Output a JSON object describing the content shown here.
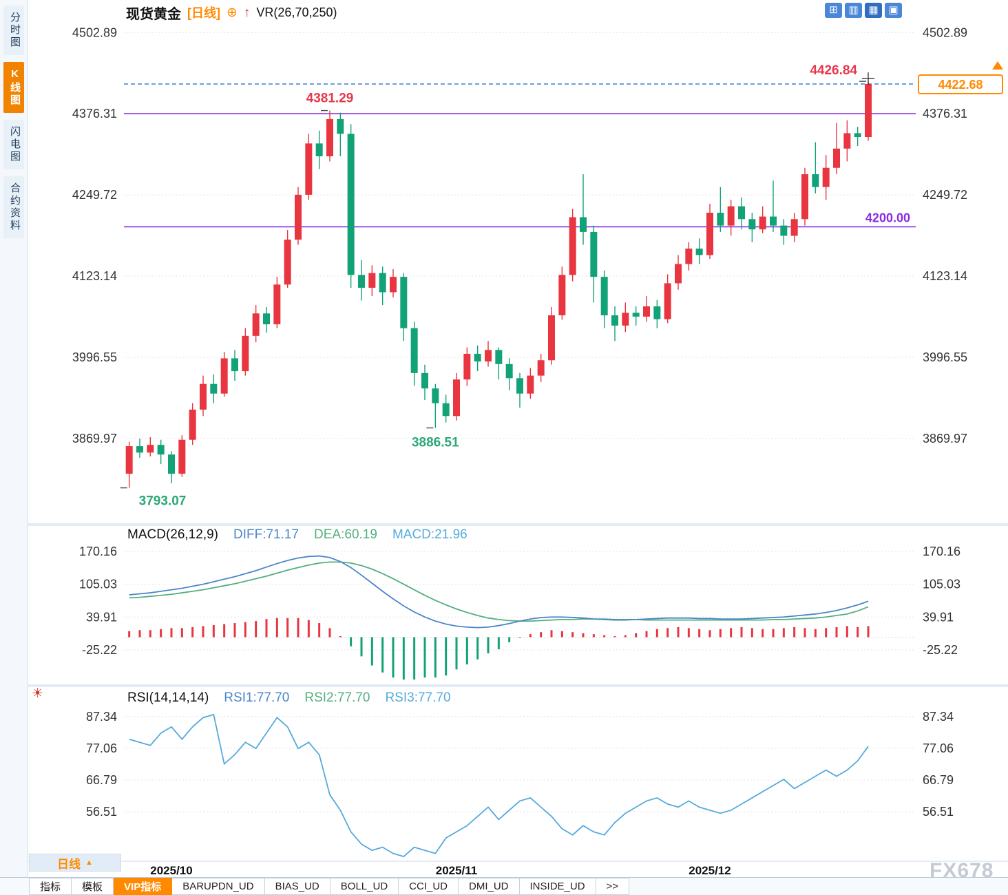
{
  "header": {
    "symbol": "现货黄金",
    "period_tag": "[日线]",
    "add_icon": "⊕",
    "arrow_icon": "↑",
    "indicator": "VR(26,70,250)",
    "layout_icons": [
      {
        "name": "layout-crosshair-icon",
        "glyph": "⊞",
        "active": false
      },
      {
        "name": "layout-grid-icon",
        "glyph": "▥",
        "active": false
      },
      {
        "name": "layout-chart-icon",
        "glyph": "▦",
        "active": true
      },
      {
        "name": "layout-split-icon",
        "glyph": "▣",
        "active": false
      }
    ]
  },
  "sidebar": {
    "items": [
      {
        "id": "timeline",
        "label": "分时图",
        "active": false
      },
      {
        "id": "kline",
        "label": "K线图",
        "active": true
      },
      {
        "id": "lightning",
        "label": "闪电图",
        "active": false
      },
      {
        "id": "contract",
        "label": "合约资料",
        "active": false
      }
    ]
  },
  "price_pane": {
    "axis_labels": [
      "4502.89",
      "4376.31",
      "4249.72",
      "4123.14",
      "3996.55",
      "3869.97"
    ],
    "axis_values": [
      4502.89,
      4376.31,
      4249.72,
      4123.14,
      3996.55,
      3869.97
    ],
    "hlines": [
      {
        "value": 4376.31,
        "label": "",
        "color": "#8a2be2"
      },
      {
        "value": 4200.0,
        "label": "4200.00",
        "color": "#8a2be2"
      }
    ],
    "current_price_line": {
      "value": 4422.68,
      "color": "#3d7fd6"
    },
    "price_tag": {
      "text": "4422.68",
      "color": "#ff8a00"
    },
    "annotations": [
      {
        "text": "4381.29",
        "value": 4381.29,
        "index": 19,
        "placement": "top-center",
        "color": "#e8374a"
      },
      {
        "text": "4426.84",
        "value": 4426.84,
        "index": 70,
        "placement": "top-left",
        "color": "#e8374a"
      },
      {
        "text": "3886.51",
        "value": 3886.51,
        "index": 29,
        "placement": "bottom-center",
        "color": "#2aa876"
      },
      {
        "text": "3793.07",
        "value": 3793.07,
        "index": 0,
        "placement": "bottom-right",
        "color": "#2aa876"
      }
    ]
  },
  "macd_pane": {
    "title": "MACD(26,12,9)",
    "diff_label": "DIFF:71.17",
    "dea_label": "DEA:60.19",
    "macd_label": "MACD:21.96",
    "axis_labels": [
      "170.16",
      "105.03",
      "39.91",
      "-25.22"
    ],
    "axis_values": [
      170.16,
      105.03,
      39.91,
      -25.22
    ]
  },
  "rsi_pane": {
    "title": "RSI(14,14,14)",
    "rsi1_label": "RSI1:77.70",
    "rsi2_label": "RSI2:77.70",
    "rsi3_label": "RSI3:77.70",
    "axis_labels": [
      "87.34",
      "77.06",
      "66.79",
      "56.51"
    ],
    "axis_values": [
      87.34,
      77.06,
      66.79,
      56.51
    ]
  },
  "chart_data": {
    "type": "candlestick",
    "title": "现货黄金 日线 (Spot Gold Daily)",
    "price_range_shown": [
      3869.97,
      4502.89
    ],
    "session_high": 4426.84,
    "session_low": 3793.07,
    "last_price": 4422.68,
    "x_ticks": [
      {
        "index": 4,
        "label": "2025/10"
      },
      {
        "index": 31,
        "label": "2025/11"
      },
      {
        "index": 55,
        "label": "2025/12"
      }
    ],
    "candles_ohlc": [
      [
        3815,
        3865,
        3793.07,
        3858
      ],
      [
        3858,
        3870,
        3840,
        3848
      ],
      [
        3848,
        3872,
        3842,
        3860
      ],
      [
        3860,
        3868,
        3830,
        3845
      ],
      [
        3845,
        3850,
        3800,
        3815
      ],
      [
        3815,
        3875,
        3810,
        3868
      ],
      [
        3868,
        3925,
        3860,
        3915
      ],
      [
        3915,
        3968,
        3905,
        3955
      ],
      [
        3955,
        3970,
        3925,
        3940
      ],
      [
        3940,
        4005,
        3935,
        3995
      ],
      [
        3995,
        4008,
        3960,
        3975
      ],
      [
        3975,
        4042,
        3968,
        4030
      ],
      [
        4030,
        4078,
        4020,
        4065
      ],
      [
        4065,
        4075,
        4035,
        4048
      ],
      [
        4048,
        4122,
        4042,
        4110
      ],
      [
        4110,
        4195,
        4105,
        4180
      ],
      [
        4180,
        4262,
        4172,
        4250
      ],
      [
        4250,
        4345,
        4242,
        4330
      ],
      [
        4330,
        4350,
        4290,
        4310
      ],
      [
        4310,
        4381.29,
        4302,
        4368
      ],
      [
        4368,
        4378,
        4310,
        4345
      ],
      [
        4345,
        4360,
        4105,
        4125
      ],
      [
        4125,
        4148,
        4085,
        4105
      ],
      [
        4105,
        4140,
        4092,
        4128
      ],
      [
        4128,
        4138,
        4078,
        4098
      ],
      [
        4098,
        4134,
        4090,
        4122
      ],
      [
        4122,
        4128,
        4022,
        4042
      ],
      [
        4042,
        4052,
        3952,
        3972
      ],
      [
        3972,
        3985,
        3930,
        3948
      ],
      [
        3948,
        3955,
        3886.51,
        3925
      ],
      [
        3925,
        3938,
        3895,
        3905
      ],
      [
        3905,
        3972,
        3898,
        3962
      ],
      [
        3962,
        4012,
        3952,
        4002
      ],
      [
        4002,
        4015,
        3975,
        3990
      ],
      [
        3990,
        4022,
        3982,
        4008
      ],
      [
        4008,
        4012,
        3962,
        3986
      ],
      [
        3986,
        3995,
        3945,
        3964
      ],
      [
        3964,
        3972,
        3918,
        3940
      ],
      [
        3940,
        3980,
        3932,
        3968
      ],
      [
        3968,
        4002,
        3958,
        3992
      ],
      [
        3992,
        4075,
        3985,
        4062
      ],
      [
        4062,
        4138,
        4055,
        4125
      ],
      [
        4125,
        4228,
        4115,
        4215
      ],
      [
        4215,
        4282,
        4172,
        4192
      ],
      [
        4192,
        4202,
        4082,
        4122
      ],
      [
        4122,
        4132,
        4042,
        4062
      ],
      [
        4062,
        4076,
        4022,
        4046
      ],
      [
        4046,
        4082,
        4036,
        4066
      ],
      [
        4066,
        4076,
        4046,
        4060
      ],
      [
        4060,
        4092,
        4052,
        4076
      ],
      [
        4076,
        4086,
        4042,
        4056
      ],
      [
        4056,
        4126,
        4050,
        4112
      ],
      [
        4112,
        4156,
        4102,
        4142
      ],
      [
        4142,
        4176,
        4132,
        4166
      ],
      [
        4166,
        4182,
        4142,
        4156
      ],
      [
        4156,
        4236,
        4150,
        4222
      ],
      [
        4222,
        4262,
        4192,
        4202
      ],
      [
        4202,
        4242,
        4186,
        4232
      ],
      [
        4232,
        4246,
        4196,
        4212
      ],
      [
        4212,
        4222,
        4176,
        4196
      ],
      [
        4196,
        4232,
        4190,
        4216
      ],
      [
        4216,
        4272,
        4192,
        4202
      ],
      [
        4202,
        4212,
        4172,
        4186
      ],
      [
        4186,
        4222,
        4176,
        4212
      ],
      [
        4212,
        4292,
        4202,
        4282
      ],
      [
        4282,
        4332,
        4252,
        4262
      ],
      [
        4262,
        4312,
        4242,
        4292
      ],
      [
        4292,
        4362,
        4282,
        4322
      ],
      [
        4322,
        4366,
        4302,
        4346
      ],
      [
        4346,
        4356,
        4326,
        4340
      ],
      [
        4340,
        4426.84,
        4334,
        4422.68
      ]
    ],
    "macd": {
      "diff": [
        84,
        86,
        88,
        91,
        94,
        97,
        101,
        105,
        110,
        115,
        120,
        126,
        132,
        139,
        146,
        152,
        157,
        160,
        161,
        158,
        150,
        138,
        123,
        107,
        91,
        76,
        62,
        50,
        40,
        32,
        26,
        22,
        20,
        19,
        20,
        23,
        27,
        32,
        36,
        39,
        40,
        40,
        39,
        38,
        36,
        35,
        34,
        34,
        35,
        36,
        37,
        38,
        38,
        38,
        37,
        37,
        36,
        36,
        36,
        37,
        38,
        39,
        40,
        42,
        44,
        46,
        49,
        53,
        58,
        64,
        71.17
      ],
      "dea": [
        78,
        79,
        81,
        83,
        85,
        88,
        91,
        94,
        98,
        102,
        106,
        111,
        116,
        121,
        127,
        133,
        138,
        143,
        147,
        149,
        149,
        147,
        142,
        135,
        126,
        116,
        105,
        94,
        83,
        73,
        64,
        56,
        49,
        43,
        38,
        35,
        33,
        32,
        32,
        33,
        34,
        35,
        35,
        36,
        36,
        36,
        35,
        35,
        35,
        34,
        34,
        34,
        34,
        34,
        34,
        34,
        34,
        34,
        34,
        34,
        34,
        35,
        35,
        36,
        37,
        38,
        40,
        43,
        46,
        52,
        60.19
      ],
      "hist": [
        12,
        14,
        14,
        16,
        18,
        18,
        20,
        22,
        24,
        26,
        28,
        30,
        32,
        36,
        38,
        38,
        38,
        34,
        28,
        18,
        2,
        -18,
        -38,
        -56,
        -70,
        -80,
        -84,
        -84,
        -80,
        -80,
        -76,
        -64,
        -54,
        -44,
        -32,
        -24,
        -10,
        0,
        6,
        10,
        14,
        12,
        10,
        8,
        6,
        4,
        2,
        4,
        8,
        12,
        16,
        18,
        20,
        18,
        16,
        14,
        16,
        18,
        20,
        18,
        16,
        16,
        18,
        20,
        18,
        16,
        18,
        20,
        22,
        20,
        21.96
      ]
    },
    "rsi": {
      "values": [
        80,
        79,
        78,
        82,
        84,
        80,
        84,
        87,
        88,
        72,
        75,
        79,
        77,
        82,
        87,
        84,
        77,
        79,
        75,
        62,
        57,
        50,
        46,
        44,
        45,
        43,
        42,
        45,
        44,
        43,
        48,
        50,
        52,
        55,
        58,
        54,
        57,
        60,
        61,
        58,
        55,
        51,
        49,
        52,
        50,
        49,
        53,
        56,
        58,
        60,
        61,
        59,
        58,
        60,
        58,
        57,
        56,
        57,
        59,
        61,
        63,
        65,
        67,
        64,
        66,
        68,
        70,
        68,
        70,
        73,
        77.7
      ]
    }
  },
  "footer": {
    "period_button": "日线",
    "period_arrow": "▲",
    "tabs": [
      {
        "label": "指标",
        "active": false
      },
      {
        "label": "模板",
        "active": false
      },
      {
        "label": "VIP指标",
        "active": true
      },
      {
        "label": "BARUPDN_UD",
        "active": false
      },
      {
        "label": "BIAS_UD",
        "active": false
      },
      {
        "label": "BOLL_UD",
        "active": false
      },
      {
        "label": "CCI_UD",
        "active": false
      },
      {
        "label": "DMI_UD",
        "active": false
      },
      {
        "label": "INSIDE_UD",
        "active": false
      },
      {
        "label": ">>",
        "active": false
      }
    ]
  },
  "watermark": "FX678",
  "colors": {
    "up": "#e8353f",
    "down": "#12a277",
    "purple_line": "#8a2be2",
    "dashed_line": "#3d7fd6",
    "diff_line": "#4a86c8",
    "dea_line": "#51af7e",
    "rsi_line": "#55aadd",
    "accent_orange": "#ff8a00",
    "grid": "#e3e3e3"
  }
}
